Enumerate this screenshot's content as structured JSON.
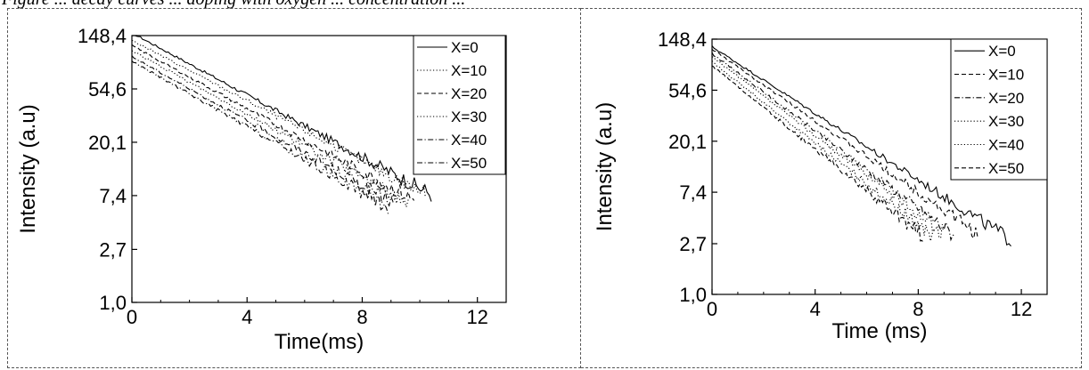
{
  "caption": "Figure ... decay curves ... doping with oxygen ... concentration ...",
  "chart_data": [
    {
      "type": "line",
      "title": "",
      "xlabel": "Time(ms)",
      "ylabel": "Intensity (a.u)",
      "y_scale": "log",
      "xlim": [
        0,
        13
      ],
      "ylim": [
        1.0,
        148.4
      ],
      "x_ticks": [
        0,
        4,
        8,
        12
      ],
      "x_tick_labels": [
        "0",
        "4",
        "8",
        "12"
      ],
      "y_ticks": [
        1.0,
        2.7,
        7.4,
        20.1,
        54.6,
        148.4
      ],
      "y_tick_labels": [
        "1,0",
        "2,7",
        "7,4",
        "20,1",
        "54,6",
        "148,4"
      ],
      "legend_position": "top-right",
      "series": [
        {
          "name": "X=0",
          "dash": "solid",
          "start": [
            0,
            156
          ],
          "end": [
            10.4,
            7.6
          ]
        },
        {
          "name": "X=10",
          "dash": "dotted",
          "start": [
            0,
            136
          ],
          "end": [
            10.2,
            7.6
          ]
        },
        {
          "name": "X=20",
          "dash": "dashed",
          "start": [
            0,
            123
          ],
          "end": [
            9.8,
            6.8
          ]
        },
        {
          "name": "X=30",
          "dash": "dotted",
          "start": [
            0,
            112
          ],
          "end": [
            9.6,
            6.5
          ]
        },
        {
          "name": "X=40",
          "dash": "dashdot",
          "start": [
            0,
            100
          ],
          "end": [
            9.2,
            6.3
          ]
        },
        {
          "name": "X=50",
          "dash": "dashdot",
          "start": [
            0,
            92
          ],
          "end": [
            8.9,
            6.0
          ]
        }
      ]
    },
    {
      "type": "line",
      "title": "",
      "xlabel": "Time (ms)",
      "ylabel": "Intensity (a.u)",
      "y_scale": "log",
      "xlim": [
        0,
        13
      ],
      "ylim": [
        1.0,
        148.4
      ],
      "x_ticks": [
        0,
        4,
        8,
        12
      ],
      "x_tick_labels": [
        "0",
        "4",
        "8",
        "12"
      ],
      "y_ticks": [
        1.0,
        2.7,
        7.4,
        20.1,
        54.6,
        148.4
      ],
      "y_tick_labels": [
        "1,0",
        "2,7",
        "7,4",
        "20,1",
        "54,6",
        "148,4"
      ],
      "legend_position": "top-right",
      "series": [
        {
          "name": "X=0",
          "dash": "solid",
          "start": [
            0,
            128
          ],
          "end": [
            11.6,
            2.9
          ]
        },
        {
          "name": "X=10",
          "dash": "dashed",
          "start": [
            0,
            122
          ],
          "end": [
            10.3,
            3.3
          ]
        },
        {
          "name": "X=20",
          "dash": "dashdot",
          "start": [
            0,
            112
          ],
          "end": [
            9.4,
            3.2
          ]
        },
        {
          "name": "X=30",
          "dash": "dotted",
          "start": [
            0,
            105
          ],
          "end": [
            9.0,
            3.3
          ]
        },
        {
          "name": "X=40",
          "dash": "dotted",
          "start": [
            0,
            95
          ],
          "end": [
            8.6,
            3.1
          ]
        },
        {
          "name": "X=50",
          "dash": "dashed",
          "start": [
            0,
            88
          ],
          "end": [
            8.2,
            3.1
          ]
        }
      ]
    }
  ]
}
